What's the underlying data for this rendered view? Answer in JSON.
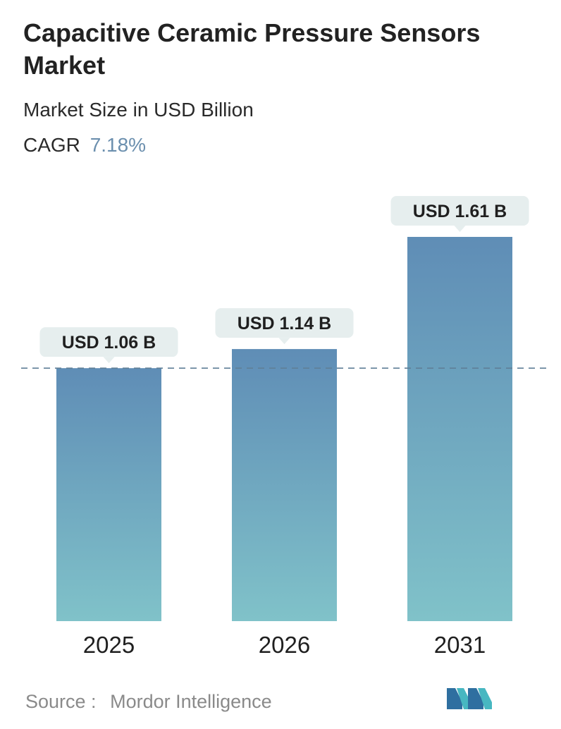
{
  "header": {
    "title": "Capacitive Ceramic Pressure Sensors Market",
    "subtitle": "Market Size in USD Billion",
    "cagr_label": "CAGR",
    "cagr_value": "7.18%"
  },
  "chart_data": {
    "type": "bar",
    "categories": [
      "2025",
      "2026",
      "2031"
    ],
    "values": [
      1.06,
      1.14,
      1.61
    ],
    "data_labels": [
      "USD 1.06 B",
      "USD 1.14 B",
      "USD 1.61 B"
    ],
    "title": "Capacitive Ceramic Pressure Sensors Market",
    "subtitle": "Market Size in USD Billion",
    "xlabel": "",
    "ylabel": "",
    "ylim": [
      0,
      1.61
    ],
    "grid": false,
    "reference_line": 1.06,
    "colors": {
      "bar_top": "#5f8db6",
      "bar_bottom": "#80c2c9",
      "label_bg": "#e6eeee",
      "reference_line": "#5f7f97"
    }
  },
  "footer": {
    "source_label": "Source :",
    "source_name": "Mordor Intelligence"
  }
}
